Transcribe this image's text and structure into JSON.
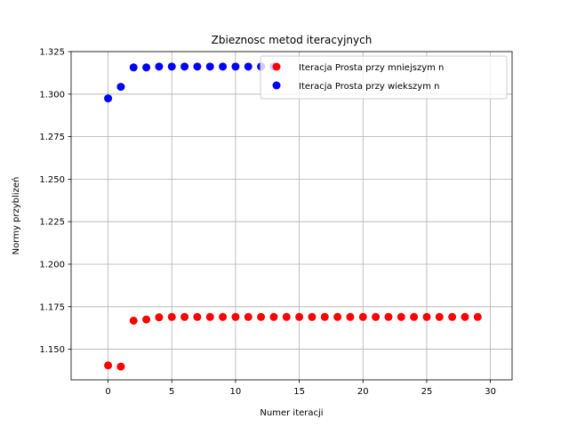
{
  "chart_data": {
    "type": "scatter",
    "title": "Zbieznosc metod iteracyjnych",
    "xlabel": "Numer iteracji",
    "ylabel": "Normy przyblizeń",
    "xlim": [
      -2.9,
      31.7
    ],
    "ylim": [
      1.132,
      1.325
    ],
    "xticks": [
      0,
      5,
      10,
      15,
      20,
      25,
      30
    ],
    "xtick_labels": [
      "0",
      "5",
      "10",
      "15",
      "20",
      "25",
      "30"
    ],
    "yticks": [
      1.15,
      1.175,
      1.2,
      1.225,
      1.25,
      1.275,
      1.3,
      1.325
    ],
    "ytick_labels": [
      "1.150",
      "1.175",
      "1.200",
      "1.225",
      "1.250",
      "1.275",
      "1.300",
      "1.325"
    ],
    "grid": true,
    "legend_position": "top-right",
    "series": [
      {
        "name": "Iteracja Prosta przy mniejszym n",
        "color": "#ff0000",
        "x": [
          0,
          1,
          2,
          3,
          4,
          5,
          6,
          7,
          8,
          9,
          10,
          11,
          12,
          13,
          14,
          15,
          16,
          17,
          18,
          19,
          20,
          21,
          22,
          23,
          24,
          25,
          26,
          27,
          28,
          29
        ],
        "y": [
          1.1405,
          1.1398,
          1.1668,
          1.1675,
          1.1688,
          1.169,
          1.169,
          1.169,
          1.169,
          1.169,
          1.169,
          1.169,
          1.169,
          1.169,
          1.169,
          1.169,
          1.169,
          1.169,
          1.169,
          1.169,
          1.169,
          1.169,
          1.169,
          1.169,
          1.169,
          1.169,
          1.169,
          1.169,
          1.169,
          1.169
        ]
      },
      {
        "name": "Iteracja Prosta przy wiekszym n",
        "color": "#0000ff",
        "x": [
          0,
          1,
          2,
          3,
          4,
          5,
          6,
          7,
          8,
          9,
          10,
          11,
          12,
          13
        ],
        "y": [
          1.2975,
          1.3043,
          1.3157,
          1.3157,
          1.3162,
          1.3162,
          1.3162,
          1.3162,
          1.3162,
          1.3162,
          1.3162,
          1.3162,
          1.3162,
          1.3162
        ]
      }
    ]
  }
}
